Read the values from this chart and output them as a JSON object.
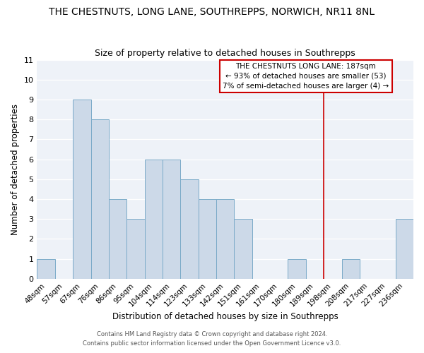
{
  "title": "THE CHESTNUTS, LONG LANE, SOUTHREPPS, NORWICH, NR11 8NL",
  "subtitle": "Size of property relative to detached houses in Southrepps",
  "xlabel": "Distribution of detached houses by size in Southrepps",
  "ylabel": "Number of detached properties",
  "bins": [
    "48sqm",
    "57sqm",
    "67sqm",
    "76sqm",
    "86sqm",
    "95sqm",
    "104sqm",
    "114sqm",
    "123sqm",
    "133sqm",
    "142sqm",
    "151sqm",
    "161sqm",
    "170sqm",
    "180sqm",
    "189sqm",
    "198sqm",
    "208sqm",
    "217sqm",
    "227sqm",
    "236sqm"
  ],
  "values": [
    1,
    0,
    9,
    8,
    4,
    3,
    6,
    6,
    5,
    4,
    4,
    3,
    0,
    0,
    1,
    0,
    0,
    1,
    0,
    0,
    3
  ],
  "bar_color": "#ccd9e8",
  "bar_edge_color": "#7aaac8",
  "vline_x": 15.5,
  "vline_color": "#cc0000",
  "annotation_title": "THE CHESTNUTS LONG LANE: 187sqm",
  "annotation_line1": "← 93% of detached houses are smaller (53)",
  "annotation_line2": "7% of semi-detached houses are larger (4) →",
  "annotation_box_color": "#ffffff",
  "annotation_box_edge": "#cc0000",
  "ylim": [
    0,
    11
  ],
  "bg_color": "#eef2f8",
  "grid_color": "#ffffff",
  "footer1": "Contains HM Land Registry data © Crown copyright and database right 2024.",
  "footer2": "Contains public sector information licensed under the Open Government Licence v3.0.",
  "title_fontsize": 10,
  "subtitle_fontsize": 9,
  "axis_label_fontsize": 8.5,
  "tick_fontsize": 7.5,
  "annot_fontsize": 7.5
}
